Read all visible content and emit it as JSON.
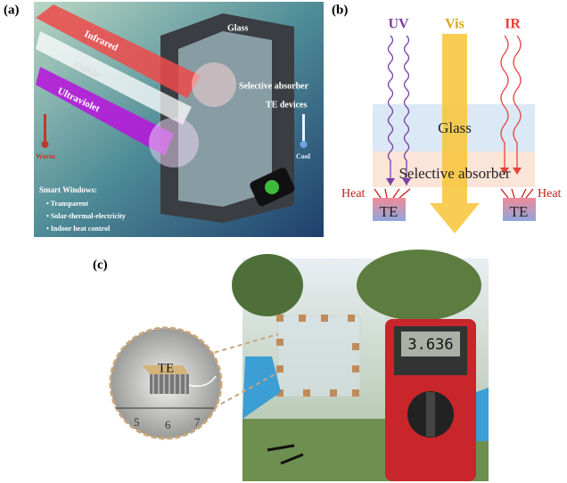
{
  "panel_a": {
    "label": "(a)",
    "beams": [
      "Infrared",
      "Visible",
      "Ultraviolet"
    ],
    "callouts": [
      "Glass",
      "Selective absorber",
      "TE devices"
    ],
    "thermometers": [
      "Warm",
      "Cool"
    ],
    "box": {
      "title": "Smart Windows:",
      "items": [
        "Transparent",
        "Solar-thermal-electricity",
        "Indoor heat control"
      ]
    }
  },
  "panel_b": {
    "label": "(b)",
    "rays": [
      "UV",
      "Vis",
      "IR"
    ],
    "layers": [
      "Glass",
      "Selective absorber"
    ],
    "heat": [
      "Heat",
      "Heat"
    ],
    "modules": [
      "TE",
      "TE"
    ]
  },
  "panel_c": {
    "label": "(c)",
    "inset_label": "TE",
    "ruler": [
      "5",
      "6",
      "7"
    ],
    "display": "3.636"
  }
}
